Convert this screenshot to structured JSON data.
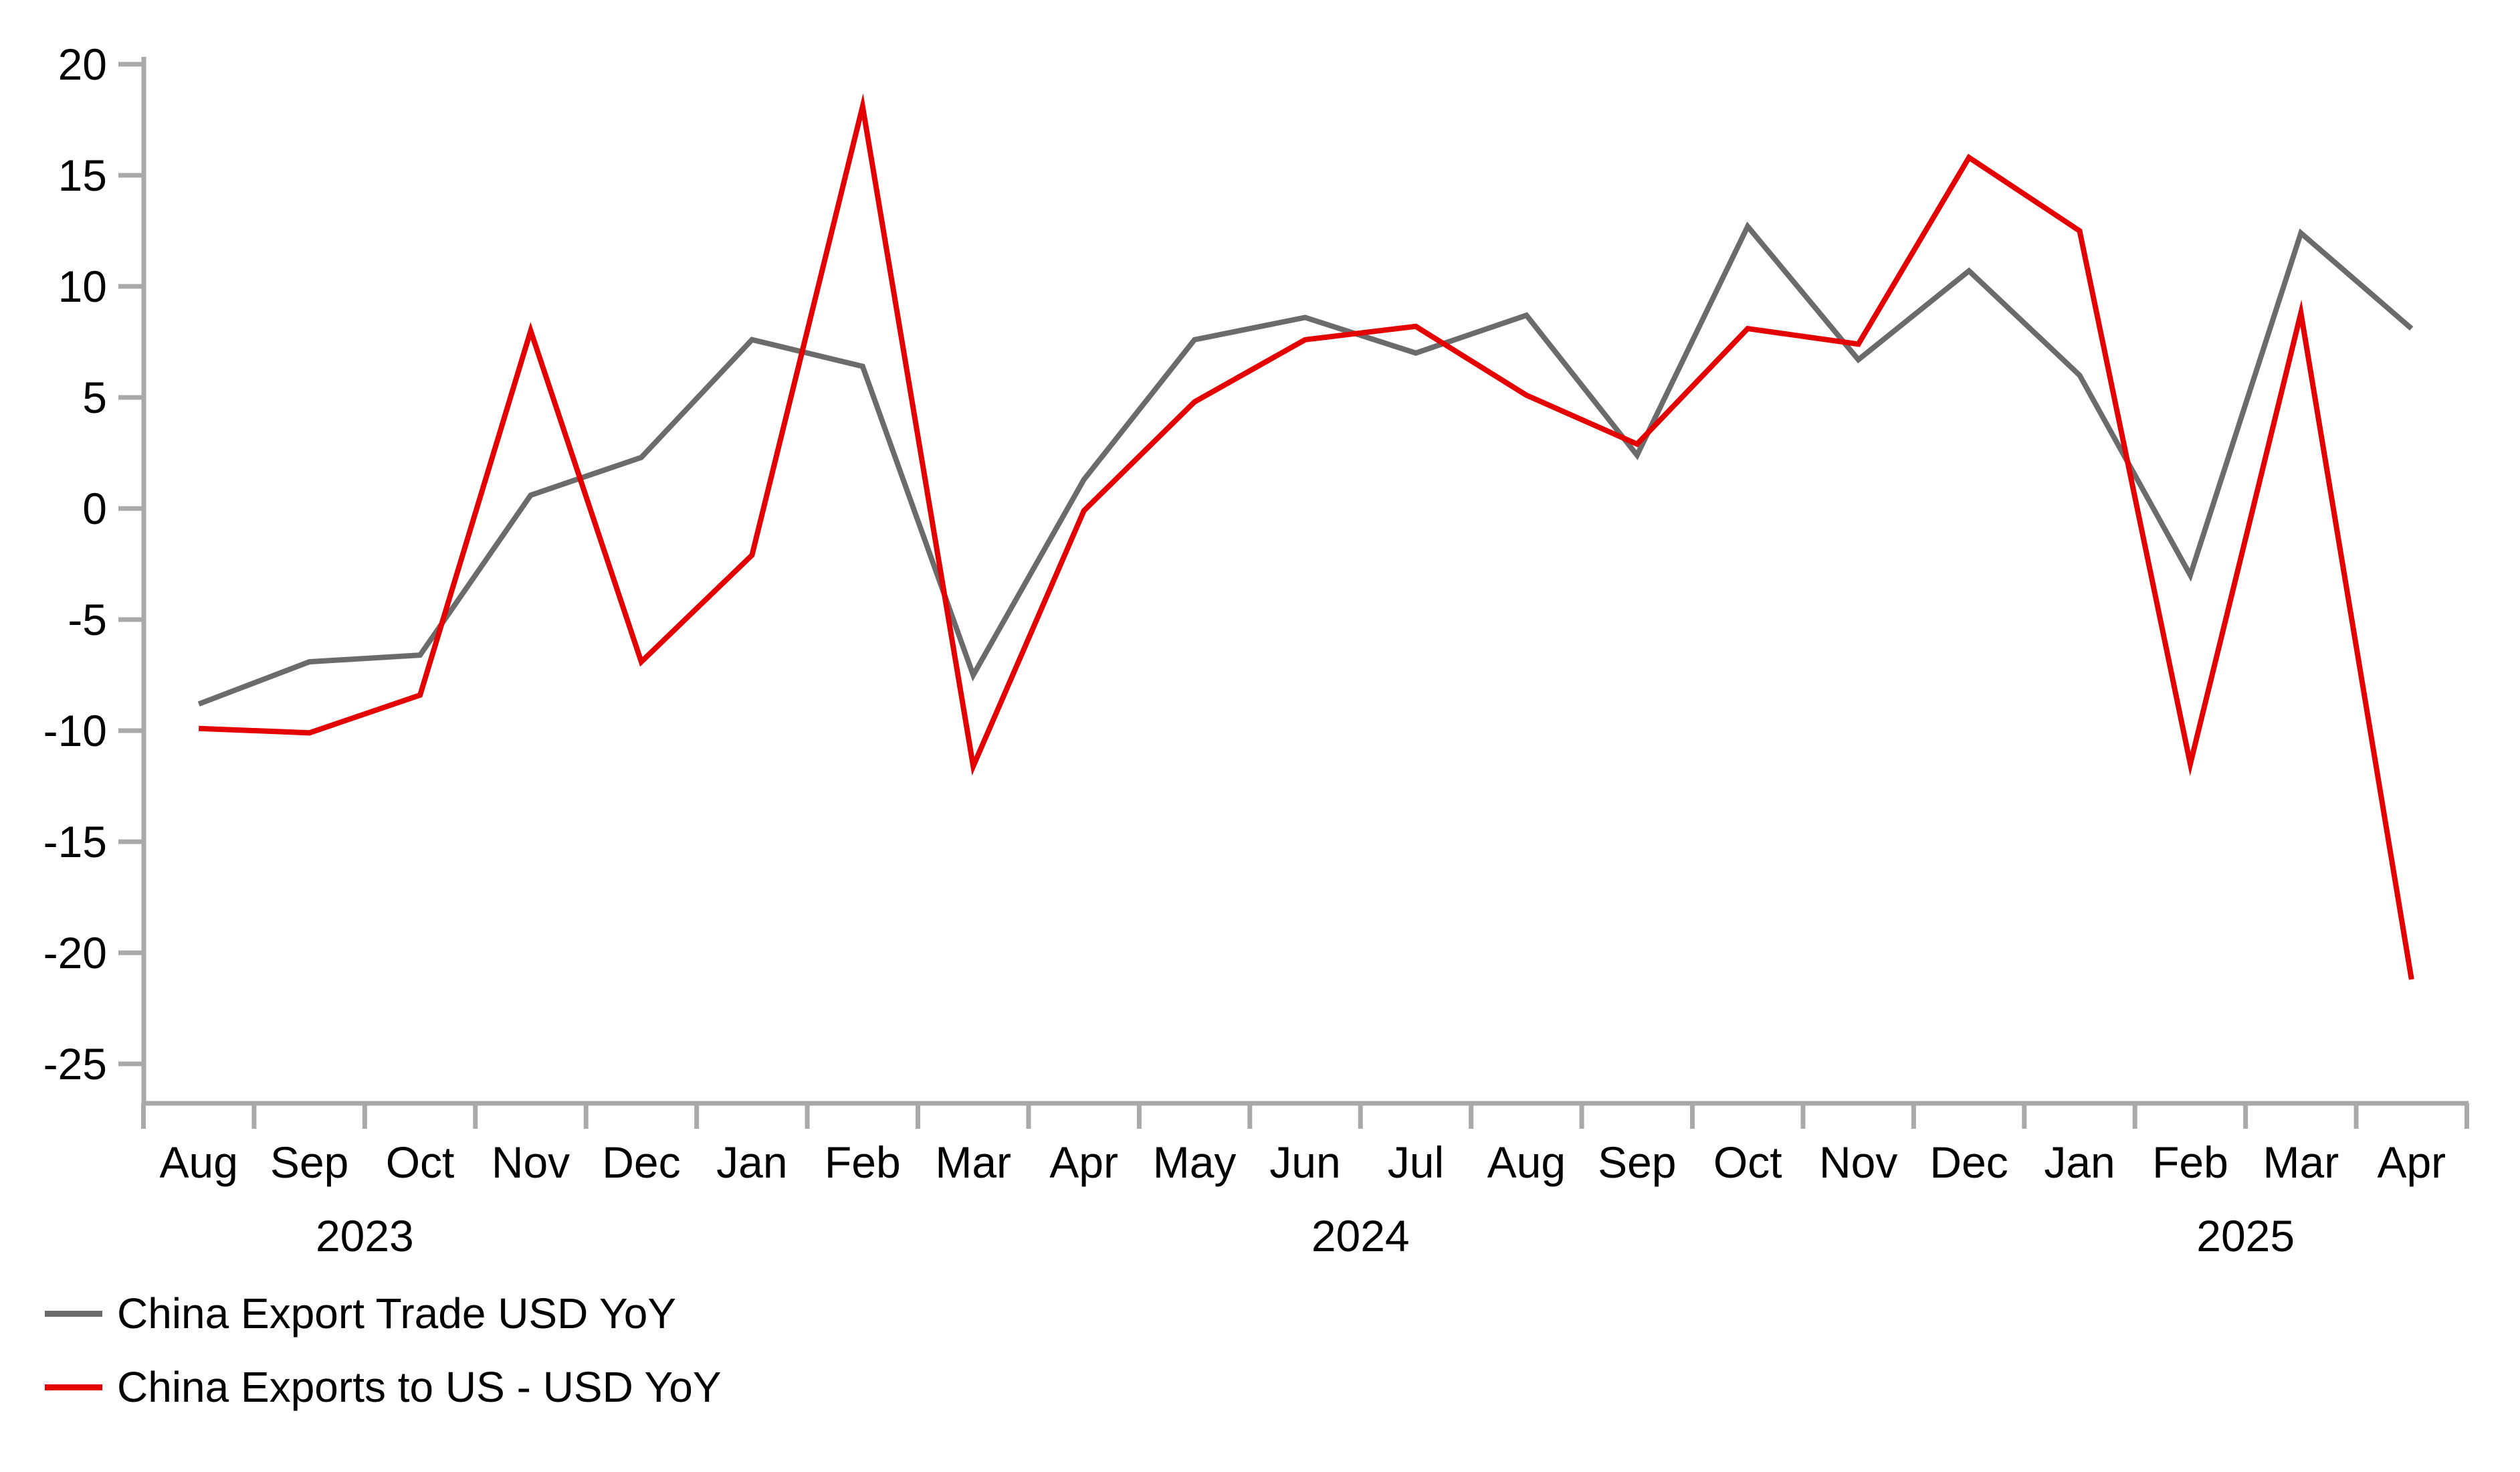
{
  "chart_data": {
    "type": "line",
    "title": "",
    "xlabel": "",
    "ylabel": "",
    "grid": "off",
    "legend_position": "bottom-left",
    "background_color": "#ffffff",
    "axis_color": "#a9a9a9",
    "text_color": "#000000",
    "categories": [
      "Aug",
      "Sep",
      "Oct",
      "Nov",
      "Dec",
      "Jan",
      "Feb",
      "Mar",
      "Apr",
      "May",
      "Jun",
      "Jul",
      "Aug",
      "Sep",
      "Oct",
      "Nov",
      "Dec",
      "Jan",
      "Feb",
      "Mar",
      "Apr"
    ],
    "full_categories": [
      "Aug 2023",
      "Sep 2023",
      "Oct 2023",
      "Nov 2023",
      "Dec 2023",
      "Jan 2024",
      "Feb 2024",
      "Mar 2024",
      "Apr 2024",
      "May 2024",
      "Jun 2024",
      "Jul 2024",
      "Aug 2024",
      "Sep 2024",
      "Oct 2024",
      "Nov 2024",
      "Dec 2024",
      "Jan 2025",
      "Feb 2025",
      "Mar 2025",
      "Apr 2025"
    ],
    "series": [
      {
        "name": "China Export Trade USD YoY",
        "color": "#6b6b6b",
        "values": [
          -8.8,
          -6.9,
          -6.6,
          0.6,
          2.3,
          7.6,
          6.4,
          -7.5,
          1.3,
          7.6,
          8.6,
          7.0,
          8.7,
          2.4,
          12.7,
          6.7,
          10.7,
          6.0,
          -3.0,
          12.4,
          8.1
        ]
      },
      {
        "name": "China Exports to US - USD YoY",
        "color": "#e40000",
        "values": [
          -9.9,
          -10.1,
          -8.4,
          8.0,
          -6.9,
          -2.1,
          18.1,
          -11.6,
          -0.1,
          4.8,
          7.6,
          8.2,
          5.1,
          2.9,
          8.1,
          7.4,
          15.8,
          12.5,
          -11.5,
          8.8,
          -21.2
        ]
      }
    ],
    "y_axis": {
      "min": -25,
      "max": 20,
      "step": 5,
      "tick_labels": [
        "20",
        "15",
        "10",
        "5",
        "0",
        "-5",
        "-10",
        "-15",
        "-20",
        "-25"
      ]
    },
    "x_axis": {
      "year_labels": [
        {
          "label": "2023",
          "boundary_index": 2
        },
        {
          "label": "2024",
          "boundary_index": 11
        },
        {
          "label": "2025",
          "boundary_index": 19
        }
      ]
    }
  }
}
